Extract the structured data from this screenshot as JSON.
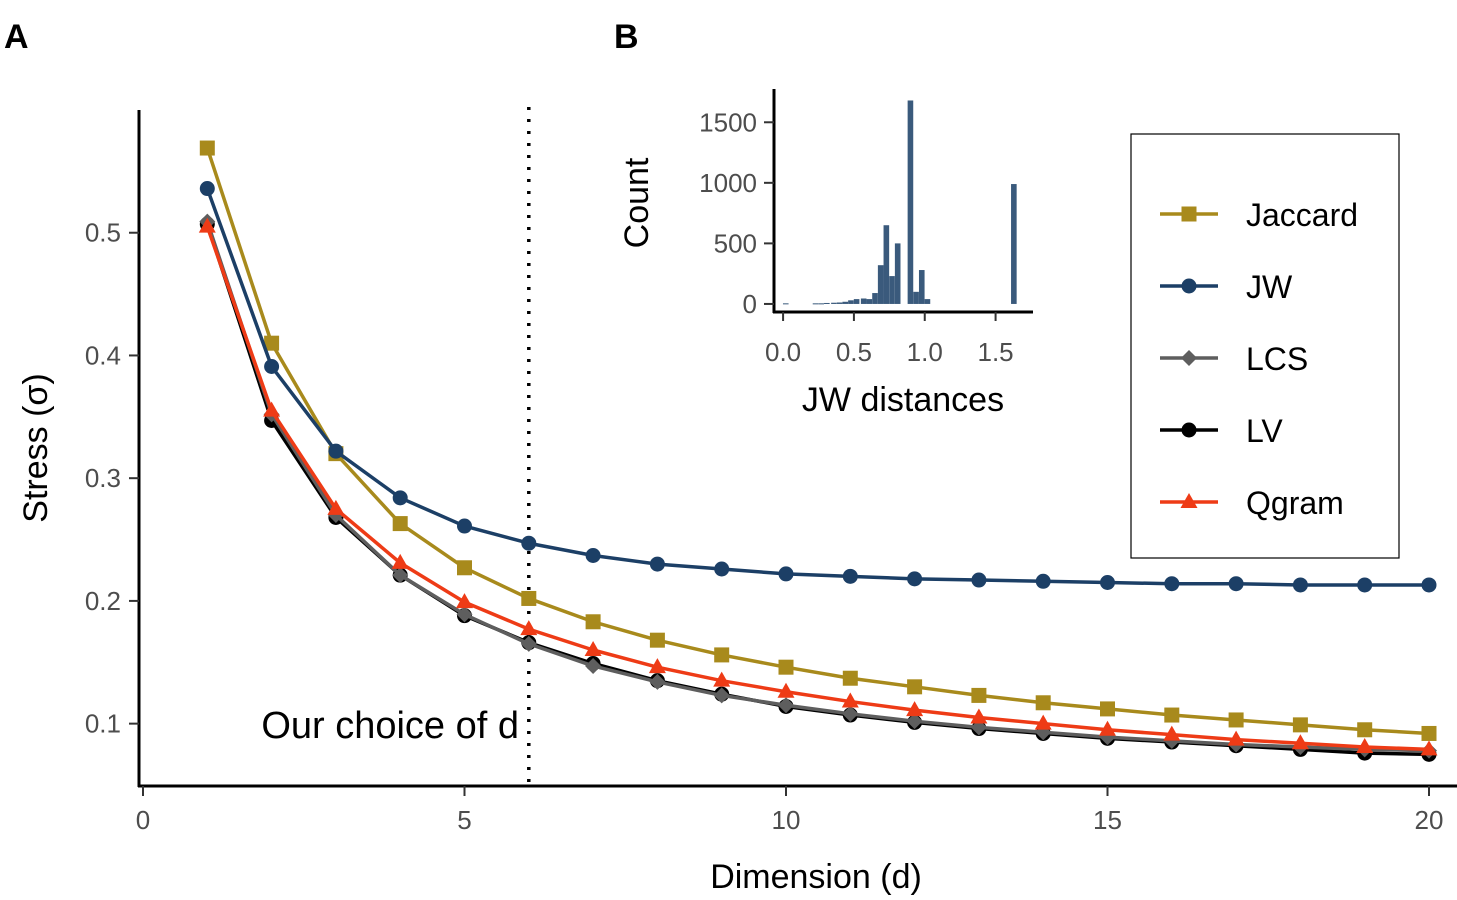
{
  "panel_labels": {
    "a": "A",
    "b": "B"
  },
  "annotation": "Our choice of d",
  "chart_data": [
    {
      "type": "line",
      "xlabel": "Dimension (d)",
      "ylabel": "Stress (σ)",
      "xlim": [
        0,
        20
      ],
      "ylim": [
        0.05,
        0.6
      ],
      "x_ticks": [
        0,
        5,
        10,
        15,
        20
      ],
      "y_ticks": [
        0.1,
        0.2,
        0.3,
        0.4,
        0.5
      ],
      "grid": false,
      "legend_position": "right",
      "vline": {
        "x": 6,
        "style": "dotted"
      },
      "x": [
        1,
        2,
        3,
        4,
        5,
        6,
        7,
        8,
        9,
        10,
        11,
        12,
        13,
        14,
        15,
        16,
        17,
        18,
        19,
        20
      ],
      "series": [
        {
          "name": "Jaccard",
          "color": "#A88A1C",
          "marker": "square",
          "values": [
            0.569,
            0.41,
            0.32,
            0.263,
            0.227,
            0.202,
            0.183,
            0.168,
            0.156,
            0.146,
            0.137,
            0.13,
            0.123,
            0.117,
            0.112,
            0.107,
            0.103,
            0.099,
            0.095,
            0.092
          ]
        },
        {
          "name": "JW",
          "color": "#1C3F66",
          "marker": "circle",
          "values": [
            0.536,
            0.391,
            0.322,
            0.284,
            0.261,
            0.247,
            0.237,
            0.23,
            0.226,
            0.222,
            0.22,
            0.218,
            0.217,
            0.216,
            0.215,
            0.214,
            0.214,
            0.213,
            0.213,
            0.213
          ]
        },
        {
          "name": "LCS",
          "color": "#5E5E5E",
          "marker": "diamond",
          "values": [
            0.509,
            0.352,
            0.27,
            0.221,
            0.189,
            0.165,
            0.147,
            0.134,
            0.123,
            0.115,
            0.108,
            0.102,
            0.097,
            0.093,
            0.089,
            0.086,
            0.083,
            0.081,
            0.079,
            0.078
          ]
        },
        {
          "name": "LV",
          "color": "#000000",
          "marker": "circle",
          "values": [
            0.507,
            0.347,
            0.268,
            0.221,
            0.188,
            0.166,
            0.149,
            0.135,
            0.124,
            0.114,
            0.107,
            0.101,
            0.096,
            0.092,
            0.088,
            0.085,
            0.082,
            0.079,
            0.076,
            0.075
          ]
        },
        {
          "name": "Qgram",
          "color": "#EE3B16",
          "marker": "triangle",
          "values": [
            0.505,
            0.355,
            0.275,
            0.231,
            0.199,
            0.177,
            0.16,
            0.146,
            0.135,
            0.126,
            0.118,
            0.111,
            0.105,
            0.1,
            0.095,
            0.091,
            0.087,
            0.084,
            0.081,
            0.079
          ]
        }
      ]
    },
    {
      "type": "bar",
      "xlabel": "JW distances",
      "ylabel": "Count",
      "xlim": [
        -0.05,
        1.75
      ],
      "ylim": [
        -50,
        1750
      ],
      "x_ticks": [
        "0.0",
        "0.5",
        "1.0",
        "1.5"
      ],
      "y_ticks": [
        0,
        500,
        1000,
        1500
      ],
      "color": "#3A5A7C",
      "bin_width": 0.0417,
      "bins": [
        {
          "x": 0.02,
          "count": 5
        },
        {
          "x": 0.23,
          "count": 5
        },
        {
          "x": 0.27,
          "count": 5
        },
        {
          "x": 0.31,
          "count": 8
        },
        {
          "x": 0.36,
          "count": 10
        },
        {
          "x": 0.4,
          "count": 12
        },
        {
          "x": 0.44,
          "count": 18
        },
        {
          "x": 0.48,
          "count": 30
        },
        {
          "x": 0.52,
          "count": 40
        },
        {
          "x": 0.57,
          "count": 45
        },
        {
          "x": 0.61,
          "count": 40
        },
        {
          "x": 0.65,
          "count": 90
        },
        {
          "x": 0.69,
          "count": 320
        },
        {
          "x": 0.73,
          "count": 650
        },
        {
          "x": 0.77,
          "count": 230
        },
        {
          "x": 0.81,
          "count": 500
        },
        {
          "x": 0.9,
          "count": 1680
        },
        {
          "x": 0.94,
          "count": 100
        },
        {
          "x": 0.98,
          "count": 280
        },
        {
          "x": 1.02,
          "count": 40
        },
        {
          "x": 1.63,
          "count": 990
        }
      ]
    }
  ]
}
